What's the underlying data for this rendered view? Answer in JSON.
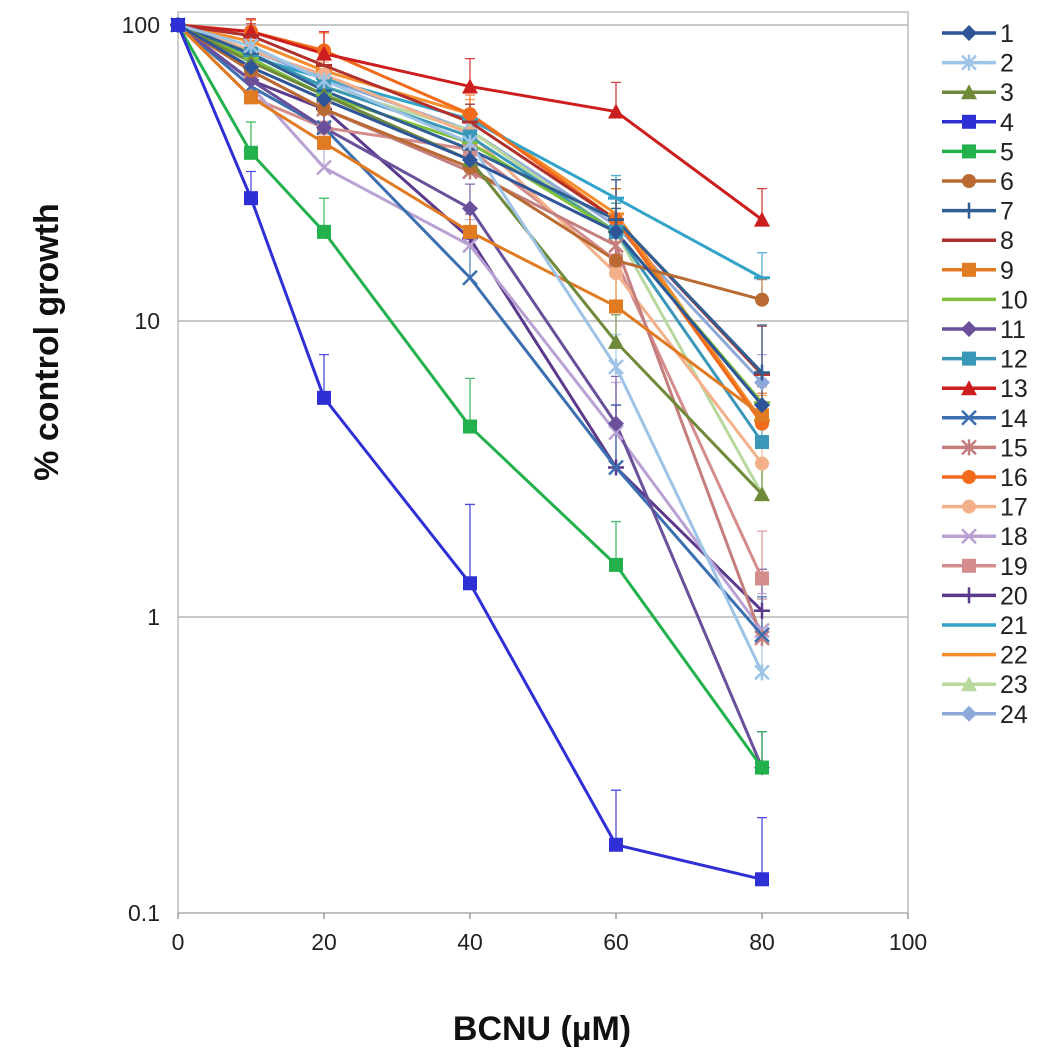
{
  "chart_data": {
    "type": "line",
    "title": "",
    "xlabel": "BCNU (µM)",
    "ylabel": "% control growth",
    "x_scale": "linear",
    "y_scale": "log",
    "xlim": [
      0,
      100
    ],
    "ylim": [
      0.1,
      100
    ],
    "x_ticks": [
      "0",
      "20",
      "40",
      "60",
      "80",
      "100"
    ],
    "y_ticks": [
      "0.1",
      "1",
      "10",
      "100"
    ],
    "grid": "horizontal major gridlines",
    "legend_position": "right",
    "error_bars": "upper error bars on each point",
    "x": [
      0,
      10,
      20,
      40,
      60,
      80
    ],
    "series": [
      {
        "name": "1",
        "color": "#2e5597",
        "marker": "diamond",
        "values": [
          100,
          72,
          56,
          35,
          20,
          5.2
        ],
        "errors": [
          0,
          6,
          6,
          5,
          4,
          1.0
        ]
      },
      {
        "name": "2",
        "color": "#9dc3e6",
        "marker": "star",
        "values": [
          100,
          85,
          65,
          40,
          7,
          0.65
        ],
        "errors": [
          0,
          7,
          6,
          6,
          2,
          0.2
        ]
      },
      {
        "name": "3",
        "color": "#6f8a3a",
        "marker": "triangle",
        "values": [
          100,
          75,
          58,
          35,
          8.5,
          2.6
        ],
        "errors": [
          0,
          7,
          6,
          5,
          2,
          0.6
        ]
      },
      {
        "name": "4",
        "color": "#2f2fd6",
        "marker": "square",
        "values": [
          100,
          26,
          5.5,
          1.3,
          0.17,
          0.13
        ],
        "errors": [
          0,
          6,
          2.2,
          1.1,
          0.09,
          0.08
        ]
      },
      {
        "name": "5",
        "color": "#22b14c",
        "marker": "square",
        "values": [
          100,
          37,
          20,
          4.4,
          1.5,
          0.31
        ],
        "errors": [
          0,
          10,
          6,
          2.0,
          0.6,
          0.1
        ]
      },
      {
        "name": "6",
        "color": "#b86a32",
        "marker": "circle",
        "values": [
          100,
          70,
          52,
          33,
          16,
          11.8
        ],
        "errors": [
          0,
          8,
          7,
          6,
          4,
          2
        ]
      },
      {
        "name": "7",
        "color": "#2f5f93",
        "marker": "plus",
        "values": [
          100,
          80,
          60,
          38,
          22,
          6.7
        ],
        "errors": [
          0,
          8,
          7,
          6,
          8,
          3
        ]
      },
      {
        "name": "8",
        "color": "#b0302d",
        "marker": "dash",
        "values": [
          100,
          92,
          73,
          47,
          22,
          6.6
        ],
        "errors": [
          0,
          9,
          8,
          7,
          8,
          3
        ]
      },
      {
        "name": "9",
        "color": "#e07b22",
        "marker": "square",
        "values": [
          100,
          57,
          40,
          20,
          11.2,
          4.8
        ],
        "errors": [
          0,
          7,
          6,
          4,
          3,
          1.2
        ]
      },
      {
        "name": "10",
        "color": "#7fbf3b",
        "marker": "dash",
        "values": [
          100,
          77,
          58,
          40,
          20,
          5.3
        ],
        "errors": [
          0,
          7,
          6,
          5,
          4,
          1
        ]
      },
      {
        "name": "11",
        "color": "#6a4f9b",
        "marker": "diamond",
        "values": [
          100,
          65,
          45,
          24,
          4.5,
          0.31
        ],
        "errors": [
          0,
          7,
          6,
          5,
          2,
          0.1
        ]
      },
      {
        "name": "12",
        "color": "#3a97b8",
        "marker": "square",
        "values": [
          100,
          80,
          62,
          42,
          20,
          3.9
        ],
        "errors": [
          0,
          8,
          7,
          6,
          5,
          1
        ]
      },
      {
        "name": "13",
        "color": "#cc1e1e",
        "marker": "triangle",
        "values": [
          100,
          95,
          80,
          62,
          51,
          22
        ],
        "errors": [
          0,
          10,
          15,
          15,
          13,
          6
        ]
      },
      {
        "name": "14",
        "color": "#3b6fb0",
        "marker": "x",
        "values": [
          100,
          62,
          45,
          14,
          3.2,
          0.87
        ],
        "errors": [
          0,
          7,
          6,
          5,
          2,
          0.3
        ]
      },
      {
        "name": "15",
        "color": "#c47e7e",
        "marker": "star",
        "values": [
          100,
          70,
          52,
          32,
          18,
          0.85
        ],
        "errors": [
          0,
          7,
          6,
          5,
          5,
          0.3
        ]
      },
      {
        "name": "16",
        "color": "#f26a1b",
        "marker": "circle",
        "values": [
          100,
          95,
          82,
          50,
          22,
          4.5
        ],
        "errors": [
          0,
          9,
          12,
          8,
          6,
          1.2
        ]
      },
      {
        "name": "17",
        "color": "#f4b08a",
        "marker": "circle",
        "values": [
          100,
          82,
          68,
          43,
          14.5,
          3.3
        ],
        "errors": [
          0,
          8,
          7,
          6,
          4,
          0.8
        ]
      },
      {
        "name": "18",
        "color": "#b9a1d3",
        "marker": "x",
        "values": [
          100,
          62,
          33,
          18,
          4.2,
          0.9
        ],
        "errors": [
          0,
          7,
          5,
          4,
          2,
          0.3
        ]
      },
      {
        "name": "19",
        "color": "#d48c8c",
        "marker": "square",
        "values": [
          100,
          57,
          45,
          38,
          16,
          1.35
        ],
        "errors": [
          0,
          7,
          6,
          5,
          4,
          0.6
        ]
      },
      {
        "name": "20",
        "color": "#5b3a8c",
        "marker": "plus",
        "values": [
          100,
          65,
          52,
          19,
          3.2,
          1.05
        ],
        "errors": [
          0,
          7,
          6,
          4,
          2,
          0.4
        ]
      },
      {
        "name": "21",
        "color": "#33a3c9",
        "marker": "dash",
        "values": [
          100,
          78,
          66,
          48,
          26,
          14
        ],
        "errors": [
          0,
          8,
          7,
          6,
          5,
          3
        ]
      },
      {
        "name": "22",
        "color": "#f58d2c",
        "marker": "dash",
        "values": [
          100,
          88,
          70,
          50,
          23,
          4.6
        ],
        "errors": [
          0,
          8,
          7,
          6,
          5,
          1
        ]
      },
      {
        "name": "23",
        "color": "#b8d89c",
        "marker": "triangle",
        "values": [
          100,
          80,
          62,
          44,
          20,
          2.6
        ],
        "errors": [
          0,
          8,
          7,
          6,
          5,
          0.6
        ]
      },
      {
        "name": "24",
        "color": "#8da9d9",
        "marker": "diamond",
        "values": [
          100,
          82,
          66,
          44,
          21,
          6.2
        ],
        "errors": [
          0,
          8,
          7,
          6,
          5,
          1.5
        ]
      }
    ]
  }
}
